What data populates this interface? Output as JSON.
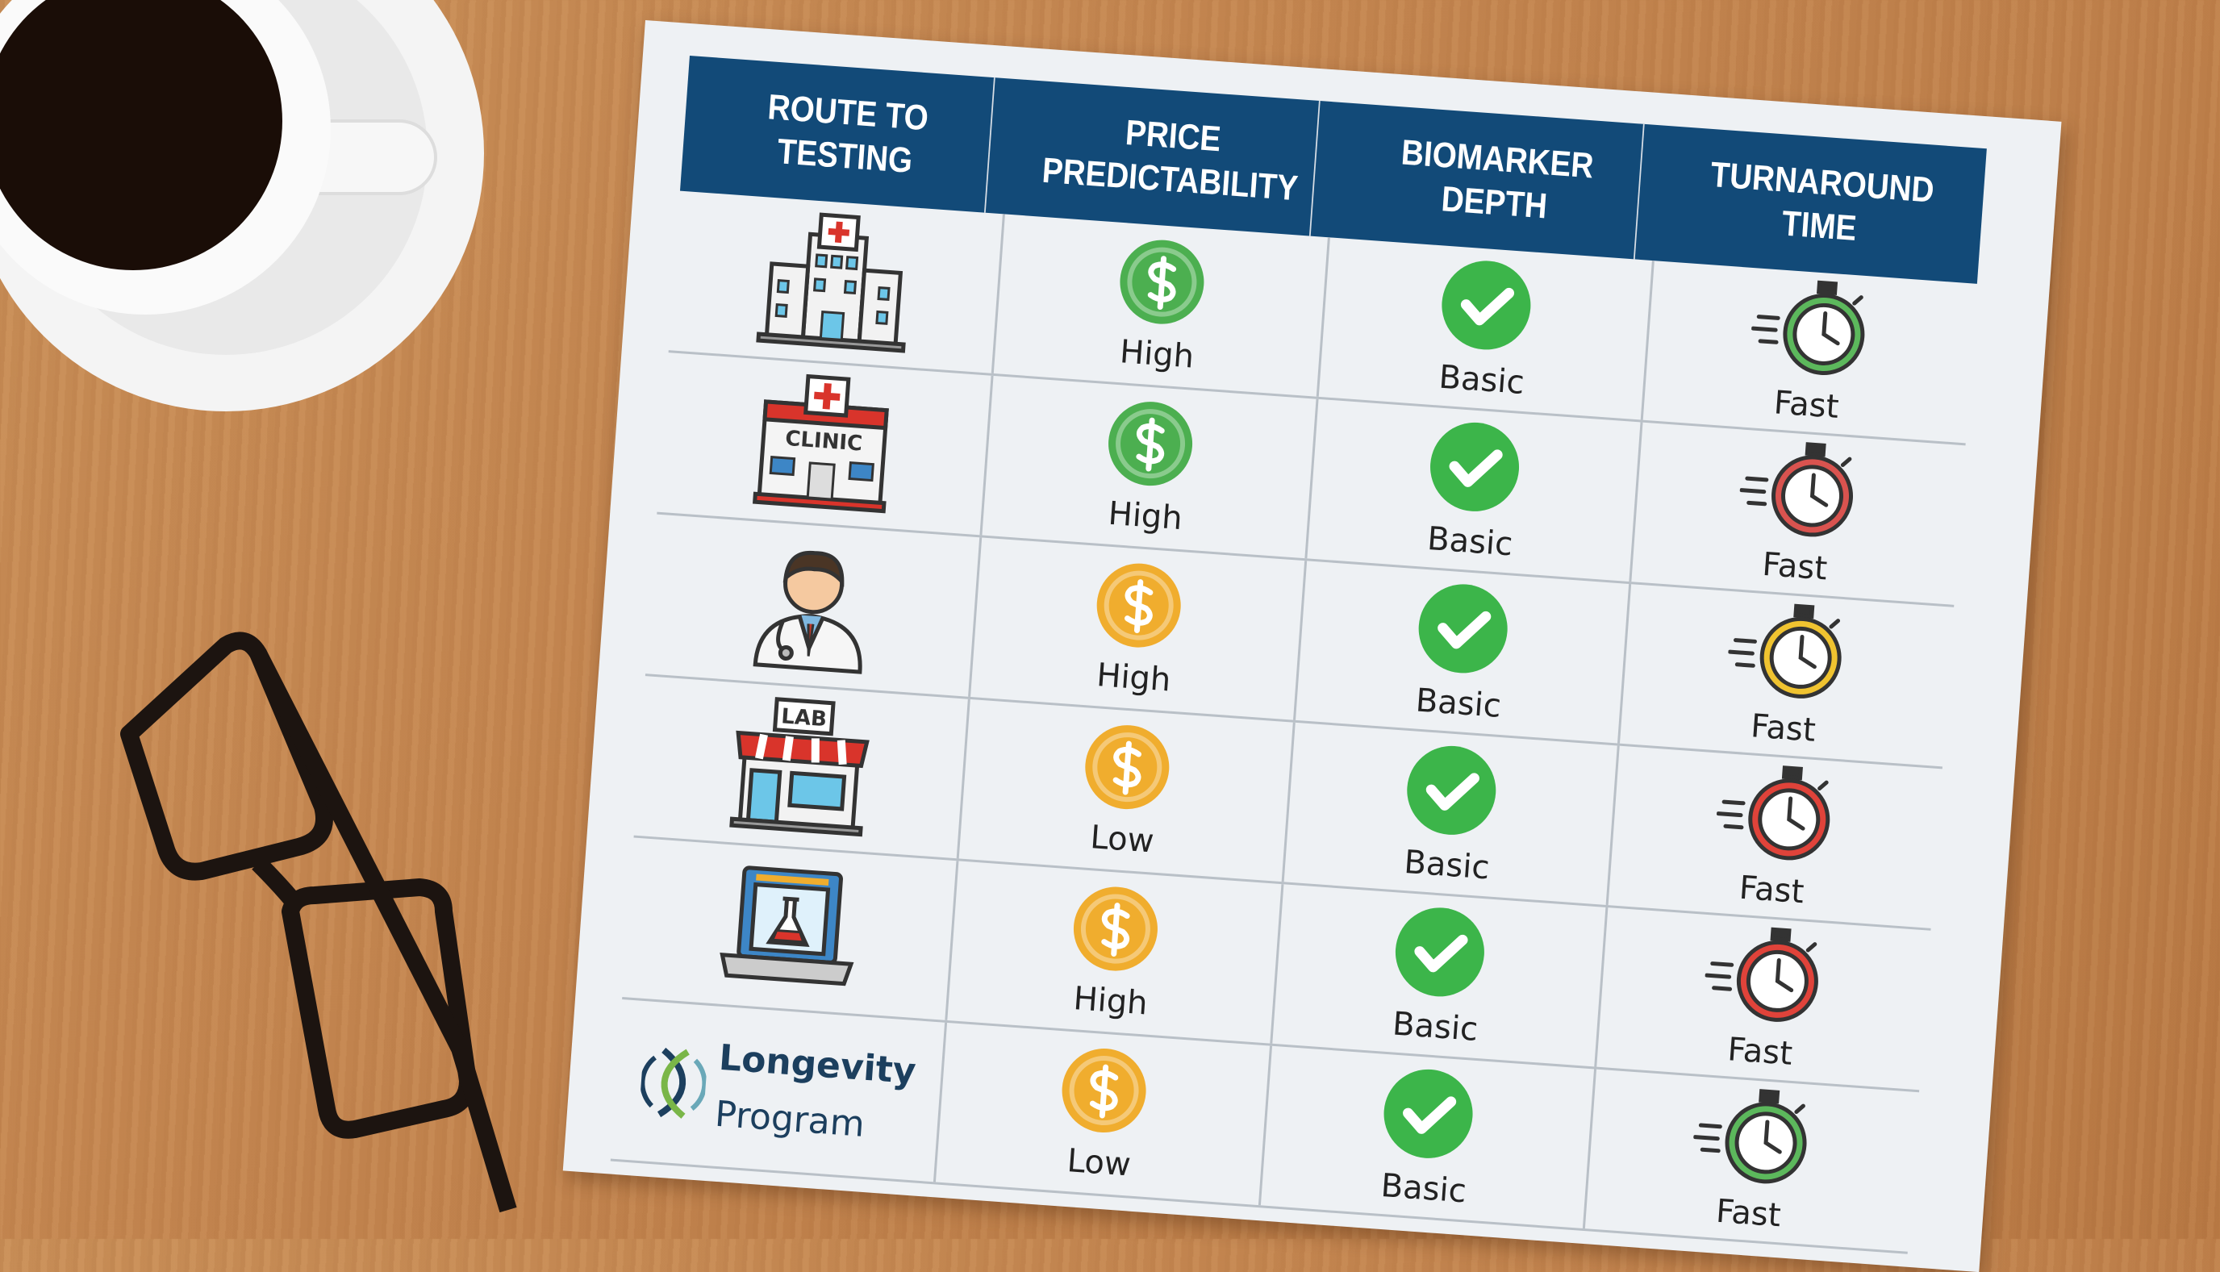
{
  "table": {
    "headers": [
      "ROUTE TO\nTESTING",
      "PRICE\nPREDICTABILITY",
      "BIOMARKER\nDEPTH",
      "TURNAROUND\nTIME"
    ],
    "rows": [
      {
        "route_icon": "hospital-icon",
        "price": "High",
        "price_color": "#4caf50",
        "biomarker": "Basic",
        "turnaround": "Fast",
        "timer_color": "#5cb85c"
      },
      {
        "route_icon": "clinic-icon",
        "route_icon_text": "CLINIC",
        "price": "High",
        "price_color": "#4caf50",
        "biomarker": "Basic",
        "turnaround": "Fast",
        "timer_color": "#d9534f"
      },
      {
        "route_icon": "doctor-icon",
        "price": "High",
        "price_color": "#f0ad2e",
        "biomarker": "Basic",
        "turnaround": "Fast",
        "timer_color": "#f0c330"
      },
      {
        "route_icon": "lab-storefront-icon",
        "route_icon_text": "LAB",
        "price": "Low",
        "price_color": "#f0ad2e",
        "biomarker": "Basic",
        "turnaround": "Fast",
        "timer_color": "#e0433a"
      },
      {
        "route_icon": "online-laptop-flask-icon",
        "price": "High",
        "price_color": "#f0ad2e",
        "biomarker": "Basic",
        "turnaround": "Fast",
        "timer_color": "#e0433a"
      },
      {
        "route_icon": "longevity-program-logo",
        "route_logo_line1": "Longevity",
        "route_logo_line2": "Program",
        "price": "Low",
        "price_color": "#f0ad2e",
        "biomarker": "Basic",
        "turnaround": "Fast",
        "timer_color": "#5cb85c"
      }
    ]
  },
  "colors": {
    "header_bg": "#124a78",
    "check_green": "#3cb54a",
    "logo_navy": "#1c3f5e",
    "logo_green": "#7ab648"
  }
}
